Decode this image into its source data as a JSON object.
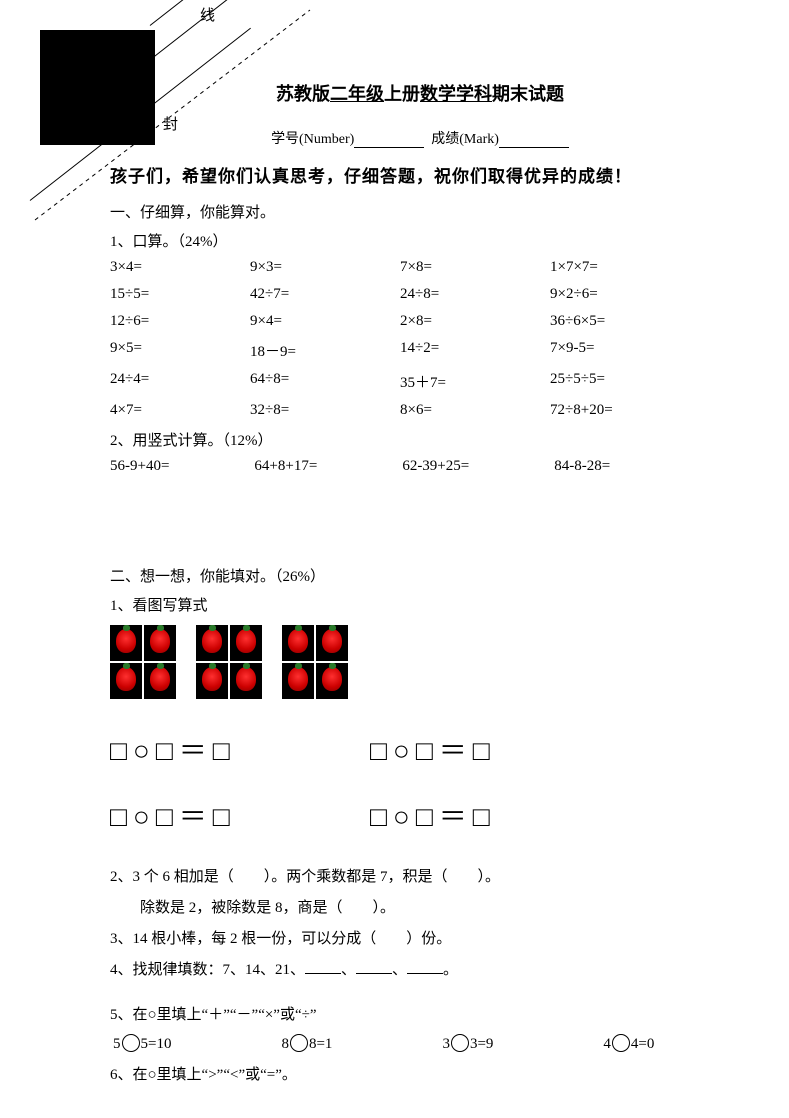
{
  "corner": {
    "xian": "线",
    "feng": "封"
  },
  "title": {
    "pre": "苏教版",
    "u1": "二年级",
    "mid": "上册",
    "u2": "数学学科",
    "suf": "期末试题"
  },
  "info": {
    "number_label": "学号(Number)",
    "mark_label": "成绩(Mark)"
  },
  "message": "孩子们，希望你们认真思考，仔细答题，祝你们取得优异的成绩！",
  "s1": {
    "heading": "一、仔细算，你能算对。",
    "q1_label": "1、口算。（24%）",
    "rows": [
      [
        "3×4=",
        "9×3=",
        "7×8=",
        "1×7×7="
      ],
      [
        "15÷5=",
        "42÷7=",
        "24÷8=",
        "9×2÷6="
      ],
      [
        "12÷6=",
        "9×4=",
        "2×8=",
        "36÷6×5="
      ],
      [
        "9×5=",
        "18－9=",
        "14÷2=",
        "7×9-5="
      ],
      [
        "24÷4=",
        "64÷8=",
        "35＋7=",
        "25÷5÷5="
      ],
      [
        "4×7=",
        "32÷8=",
        "8×6=",
        "72÷8+20="
      ]
    ],
    "q2_label": "2、用竖式计算。（12%）",
    "col_items": [
      "56-9+40=",
      "64+8+17=",
      "62-39+25=",
      "84-8-28="
    ]
  },
  "s2": {
    "heading": "二、想一想，你能填对。（26%）",
    "q1_label": "1、看图写算式",
    "eq_template": "□○□＝□",
    "q2a": "2、3 个 6 相加是（　　）。两个乘数都是 7，积是（　　）。",
    "q2b": "除数是 2，被除数是 8，商是（　　）。",
    "q3": "3、14 根小棒，每 2 根一份，可以分成（　　）份。",
    "q4_pre": "4、找规律填数：7、14、21、",
    "q4_sep": "、",
    "q4_end": "。",
    "q5": "5、在○里填上“＋”“－”“×”或“÷”",
    "q5_items": [
      {
        "a": "5",
        "b": "5=10"
      },
      {
        "a": "8",
        "b": "8=1"
      },
      {
        "a": "3",
        "b": "3=9"
      },
      {
        "a": "4",
        "b": "4=0"
      }
    ],
    "q6": "6、在○里填上“>”“<”或“=”。"
  },
  "style": {
    "bg": "#ffffff",
    "text": "#000000",
    "title_fontsize": 18,
    "body_fontsize": 15,
    "strawberry_red": "#cc0000",
    "strawberry_leaf": "#2a7a2a"
  }
}
